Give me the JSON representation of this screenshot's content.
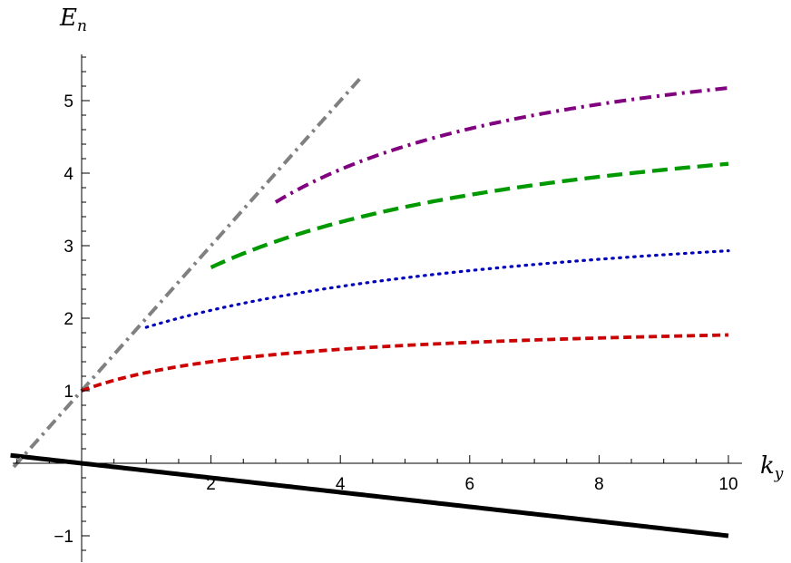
{
  "chart_data": {
    "type": "line",
    "title": "",
    "xlabel": {
      "main": "k",
      "sub": "y"
    },
    "ylabel": {
      "main": "E",
      "sub": "n"
    },
    "xlim": [
      -1.1,
      10.2
    ],
    "ylim": [
      -1.25,
      5.65
    ],
    "x_ticks": [
      2,
      4,
      6,
      8,
      10
    ],
    "y_ticks": [
      -1,
      1,
      2,
      3,
      4,
      5
    ],
    "x_tick_labels": [
      "2",
      "4",
      "6",
      "8",
      "10"
    ],
    "y_tick_labels": [
      "−1",
      "1",
      "2",
      "3",
      "4",
      "5"
    ],
    "grid": false,
    "series": [
      {
        "style": "solid",
        "color": "#000000",
        "formula": "-0.1*x",
        "x_start": -1.1,
        "x_end": 10,
        "points": [
          [
            -1.1,
            0.11
          ],
          [
            0,
            0
          ],
          [
            2,
            -0.2
          ],
          [
            4,
            -0.4
          ],
          [
            6,
            -0.6
          ],
          [
            8,
            -0.8
          ],
          [
            10,
            -1.0
          ]
        ]
      },
      {
        "style": "dashdot",
        "color": "#808080",
        "formula": "x+1",
        "x_start": -1.05,
        "x_end": 5,
        "points": [
          [
            -1.05,
            -0.05
          ],
          [
            0,
            1
          ],
          [
            1,
            2
          ],
          [
            2,
            3
          ],
          [
            3,
            4
          ],
          [
            4,
            5
          ],
          [
            5,
            6
          ]
        ]
      },
      {
        "style": "dashed",
        "color": "#cc0000",
        "formula": "2-1/(1+x/3)",
        "x_start": 0,
        "x_end": 10,
        "points": [
          [
            0,
            1.0
          ],
          [
            1,
            1.25
          ],
          [
            2,
            1.4
          ],
          [
            4,
            1.57
          ],
          [
            6,
            1.67
          ],
          [
            8,
            1.73
          ],
          [
            10,
            1.77
          ]
        ]
      },
      {
        "style": "dotted",
        "color": "#0000bb",
        "formula": "3.75-1.875/(1+(x-1)/7)",
        "x_start": 1,
        "x_end": 10,
        "points": [
          [
            1,
            1.875
          ],
          [
            2,
            2.11
          ],
          [
            4,
            2.55
          ],
          [
            6,
            2.85
          ],
          [
            8,
            3.0
          ],
          [
            10,
            3.2
          ]
        ]
      },
      {
        "style": "longdash",
        "color": "#009900",
        "formula": "5.2-2.5/(1+(x-2)/6)",
        "x_start": 2,
        "x_end": 10,
        "points": [
          [
            2,
            2.7
          ],
          [
            4,
            3.33
          ],
          [
            6,
            3.77
          ],
          [
            8,
            4.12
          ],
          [
            10,
            4.37
          ]
        ]
      },
      {
        "style": "dashdot",
        "color": "#800080",
        "formula": "6.3-2.7/(1+(x-3)/5)",
        "x_start": 3,
        "x_end": 10,
        "points": [
          [
            3,
            3.6
          ],
          [
            4,
            4.05
          ],
          [
            6,
            4.61
          ],
          [
            8,
            4.98
          ],
          [
            10,
            5.29
          ]
        ]
      }
    ]
  }
}
